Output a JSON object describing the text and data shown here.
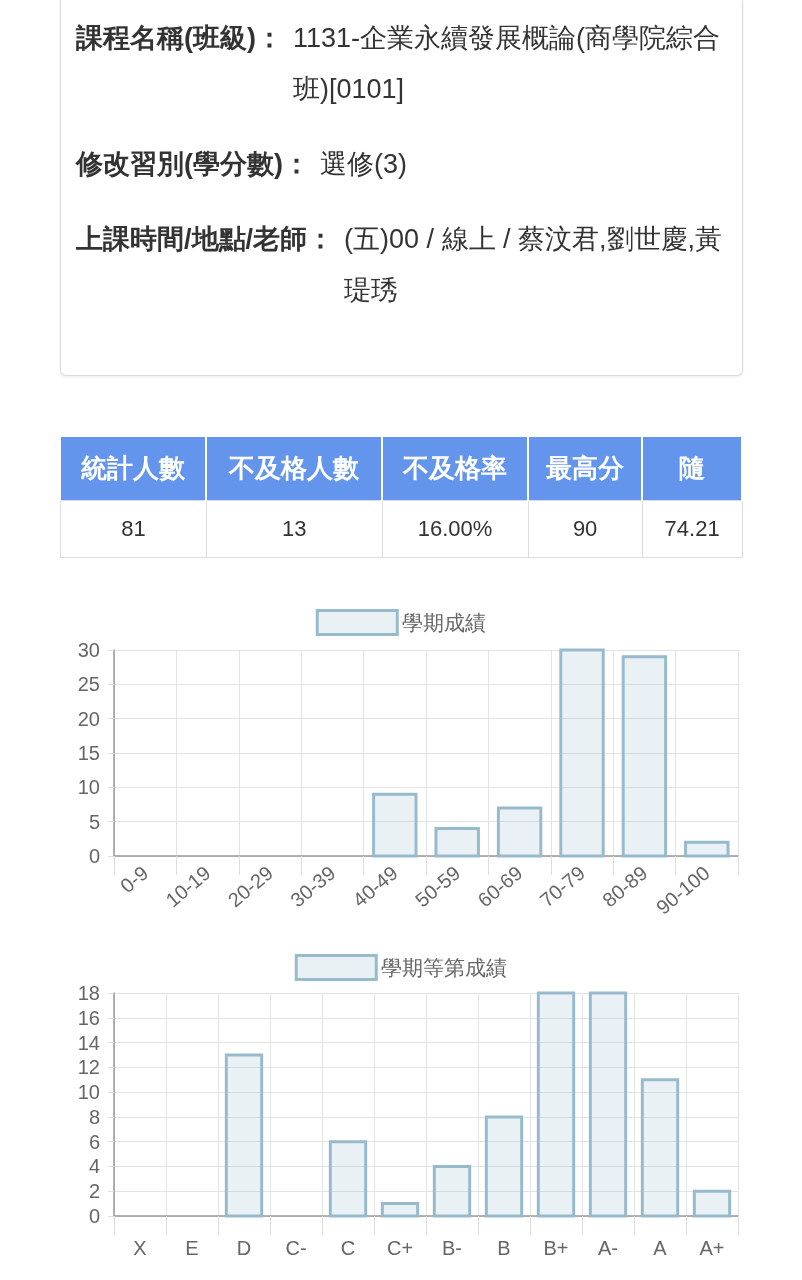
{
  "chart_data": [
    {
      "type": "other",
      "annotations": [
        "課程名稱(班級)：",
        "1131-企業永續發展概論(商學院綜合班)[0101]",
        "修改習別(學分數)：",
        "選修(3)",
        "上課時間/地點/老師：",
        "(五)00 / 線上 / 蔡汶君,劉世慶,黃瑅琇"
      ]
    },
    {
      "type": "other",
      "categories": [
        "統計人數",
        "不及格人數",
        "不及格率",
        "最高分",
        "隨"
      ],
      "value_labels": [
        "81",
        "13",
        "16.00%",
        "90",
        "74.21"
      ]
    },
    {
      "type": "bar",
      "categories": [
        "0-9",
        "10-19",
        "20-29",
        "30-39",
        "40-49",
        "50-59",
        "60-69",
        "70-79",
        "80-89",
        "90-100"
      ],
      "series": [
        {
          "name": "學期成績",
          "color": "#97bbcd",
          "values": [
            0,
            0,
            0,
            0,
            9,
            4,
            7,
            30,
            29,
            2
          ]
        }
      ],
      "ylim": [
        0,
        30
      ],
      "yticks": [
        0,
        5,
        10,
        15,
        20,
        25,
        30
      ],
      "grid": true,
      "legend": "top"
    },
    {
      "type": "bar",
      "categories": [
        "X",
        "E",
        "D",
        "C-",
        "C",
        "C+",
        "B-",
        "B",
        "B+",
        "A-",
        "A",
        "A+"
      ],
      "series": [
        {
          "name": "學期等第成績",
          "color": "#97bbcd",
          "values": [
            0,
            0,
            13,
            0,
            6,
            1,
            4,
            8,
            18,
            18,
            11,
            2
          ]
        }
      ],
      "ylim": [
        0,
        18
      ],
      "yticks": [
        0,
        2,
        4,
        6,
        8,
        10,
        12,
        14,
        16,
        18
      ],
      "grid": true,
      "legend": "top"
    }
  ]
}
